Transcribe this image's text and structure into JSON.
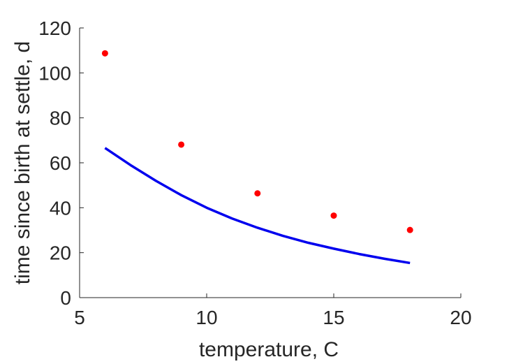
{
  "chart_data": {
    "type": "scatter",
    "title": "",
    "xlabel": "temperature, C",
    "ylabel": "time since birth at settle, d",
    "xlim": [
      5,
      20
    ],
    "ylim": [
      0,
      120
    ],
    "xticks": [
      5,
      10,
      15,
      20
    ],
    "yticks": [
      0,
      20,
      40,
      60,
      80,
      100,
      120
    ],
    "xtick_labels": [
      "5",
      "10",
      "15",
      "20"
    ],
    "ytick_labels": [
      "0",
      "20",
      "40",
      "60",
      "80",
      "100",
      "120"
    ],
    "grid": false,
    "legend": "none",
    "series": [
      {
        "type": "scatter",
        "color": "#ff0000",
        "x": [
          6,
          9,
          12,
          15,
          18
        ],
        "y": [
          108.7,
          68.1,
          46.4,
          36.5,
          30.1
        ]
      },
      {
        "type": "line",
        "color": "#0000ee",
        "x": [
          6,
          7,
          8,
          9,
          10,
          11,
          12,
          13,
          14,
          15,
          16,
          17,
          18
        ],
        "y": [
          66.6,
          59.0,
          52.0,
          45.6,
          40.0,
          35.2,
          31.1,
          27.5,
          24.4,
          21.8,
          19.4,
          17.3,
          15.4
        ]
      }
    ]
  }
}
